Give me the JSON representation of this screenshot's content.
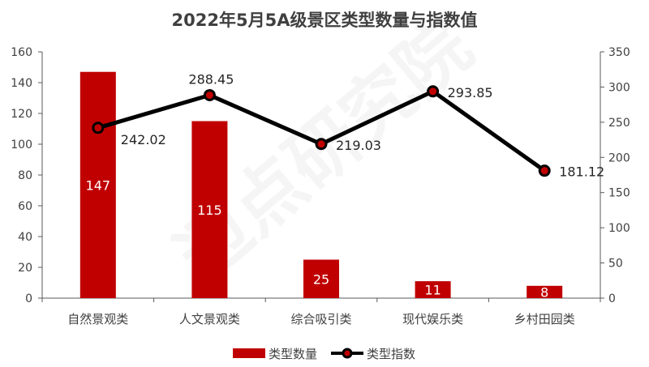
{
  "chart_data": {
    "type": "bar",
    "title": "2022年5月5A级景区类型数量与指数值",
    "categories": [
      "自然景观类",
      "人文景观类",
      "综合吸引类",
      "现代娱乐类",
      "乡村田园类"
    ],
    "series": [
      {
        "name": "类型数量",
        "type": "bar",
        "axis": "left",
        "color": "#C00000",
        "values": [
          147,
          115,
          25,
          11,
          8
        ]
      },
      {
        "name": "类型指数",
        "type": "line",
        "axis": "right",
        "color": "#000000",
        "marker_color": "#C00000",
        "values": [
          242.02,
          288.45,
          219.03,
          293.85,
          181.12
        ]
      }
    ],
    "y_left": {
      "min": 0,
      "max": 160,
      "step": 20
    },
    "y_right": {
      "min": 0,
      "max": 350,
      "step": 50
    },
    "legend_position": "bottom",
    "watermark": "迈点研究院"
  }
}
